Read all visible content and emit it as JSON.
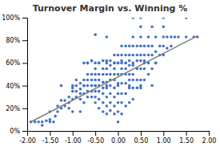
{
  "chart_data": {
    "type": "scatter",
    "title": "Turnover Margin vs. Winning %",
    "series": [
      {
        "type": "scatter",
        "color": "#4472C4",
        "x": [
          -1.92,
          -1.75,
          -1.67,
          -1.58,
          -1.5,
          -1.5,
          -1.42,
          -1.38,
          -1.33,
          -1.33,
          -1.25,
          -1.25,
          -1.17,
          -1.17,
          -1.08,
          -1.08,
          -1.08,
          -1.0,
          -1.0,
          -1.0,
          -1.0,
          -0.92,
          -0.92,
          -0.92,
          -0.83,
          -0.83,
          -0.83,
          -0.83,
          -0.83,
          -0.75,
          -0.75,
          -0.75,
          -0.75,
          -0.67,
          -0.67,
          -0.67,
          -0.67,
          -0.67,
          -0.67,
          -0.58,
          -0.58,
          -0.58,
          -0.58,
          -0.58,
          -0.58,
          -0.5,
          -0.5,
          -0.5,
          -0.5,
          -0.5,
          -0.5,
          -0.5,
          -0.5,
          -0.42,
          -0.42,
          -0.42,
          -0.42,
          -0.42,
          -0.42,
          -0.42,
          -0.33,
          -0.33,
          -0.33,
          -0.33,
          -0.33,
          -0.33,
          -0.33,
          -0.33,
          -0.25,
          -0.25,
          -0.25,
          -0.25,
          -0.25,
          -0.25,
          -0.25,
          -0.25,
          -0.25,
          -0.17,
          -0.17,
          -0.17,
          -0.17,
          -0.17,
          -0.17,
          -0.17,
          -0.17,
          -0.08,
          -0.08,
          -0.08,
          -0.08,
          -0.08,
          -0.08,
          -0.08,
          -0.08,
          -0.08,
          0.0,
          0.0,
          0.0,
          0.0,
          0.0,
          0.0,
          0.0,
          0.0,
          0.08,
          0.08,
          0.08,
          0.08,
          0.08,
          0.08,
          0.08,
          0.08,
          0.08,
          0.17,
          0.17,
          0.17,
          0.17,
          0.17,
          0.17,
          0.17,
          0.17,
          0.25,
          0.25,
          0.25,
          0.25,
          0.25,
          0.25,
          0.25,
          0.33,
          0.33,
          0.33,
          0.33,
          0.33,
          0.33,
          0.33,
          0.33,
          0.42,
          0.42,
          0.42,
          0.42,
          0.42,
          0.42,
          0.5,
          0.5,
          0.5,
          0.5,
          0.5,
          0.5,
          0.5,
          0.58,
          0.58,
          0.58,
          0.58,
          0.58,
          0.67,
          0.67,
          0.67,
          0.67,
          0.67,
          0.75,
          0.75,
          0.75,
          0.83,
          0.83,
          0.83,
          0.92,
          0.92,
          1.0,
          1.0,
          1.0,
          1.08,
          1.08,
          1.17,
          1.17,
          1.25,
          1.33,
          1.5,
          1.67,
          1.75,
          -1.83,
          -1.67,
          -1.5,
          -0.75,
          -0.5,
          0.33,
          0.5,
          1.0,
          1.5,
          -0.92,
          -0.58,
          -0.25,
          0.08,
          0.25,
          0.5,
          0.75,
          1.0,
          -0.67,
          -0.42,
          -0.08,
          0.0,
          0.17,
          0.33,
          0.58,
          0.83,
          -1.25,
          -1.0,
          -0.75,
          -0.5,
          -0.25,
          0.0,
          0.25,
          0.5,
          0.75
        ],
        "values": [
          0.08,
          0.08,
          0.05,
          0.09,
          0.1,
          0.17,
          0.08,
          0.13,
          0.17,
          0.22,
          0.2,
          0.27,
          0.22,
          0.27,
          0.2,
          0.25,
          0.3,
          0.28,
          0.35,
          0.38,
          0.17,
          0.3,
          0.35,
          0.4,
          0.28,
          0.33,
          0.37,
          0.42,
          0.17,
          0.25,
          0.33,
          0.4,
          0.45,
          0.3,
          0.35,
          0.4,
          0.45,
          0.5,
          0.6,
          0.3,
          0.35,
          0.4,
          0.45,
          0.5,
          0.62,
          0.25,
          0.3,
          0.35,
          0.4,
          0.45,
          0.5,
          0.55,
          0.6,
          0.2,
          0.28,
          0.35,
          0.4,
          0.45,
          0.5,
          0.6,
          0.17,
          0.25,
          0.33,
          0.38,
          0.43,
          0.5,
          0.55,
          0.62,
          0.15,
          0.22,
          0.3,
          0.38,
          0.43,
          0.5,
          0.55,
          0.6,
          0.83,
          0.18,
          0.25,
          0.33,
          0.4,
          0.45,
          0.5,
          0.58,
          0.62,
          0.15,
          0.22,
          0.3,
          0.38,
          0.45,
          0.5,
          0.55,
          0.6,
          0.67,
          0.08,
          0.17,
          0.25,
          0.33,
          0.42,
          0.5,
          0.6,
          0.67,
          0.15,
          0.25,
          0.33,
          0.42,
          0.5,
          0.55,
          0.6,
          0.67,
          0.75,
          0.22,
          0.33,
          0.42,
          0.5,
          0.55,
          0.6,
          0.67,
          0.75,
          0.25,
          0.38,
          0.45,
          0.5,
          0.58,
          0.67,
          0.75,
          0.28,
          0.38,
          0.45,
          0.5,
          0.58,
          0.67,
          0.75,
          0.83,
          0.38,
          0.45,
          0.55,
          0.62,
          0.67,
          0.75,
          0.38,
          0.45,
          0.55,
          0.62,
          0.67,
          0.75,
          0.83,
          0.45,
          0.55,
          0.62,
          0.67,
          0.75,
          0.5,
          0.6,
          0.67,
          0.75,
          0.83,
          0.55,
          0.67,
          0.75,
          0.6,
          0.7,
          0.83,
          0.67,
          0.75,
          0.67,
          0.75,
          0.83,
          0.73,
          0.83,
          0.75,
          0.83,
          0.83,
          0.83,
          0.83,
          0.83,
          0.83,
          0.08,
          0.08,
          0.08,
          0.6,
          0.85,
          1.0,
          1.0,
          1.0,
          1.0,
          0.45,
          0.62,
          0.62,
          0.62,
          0.62,
          0.92,
          0.92,
          0.92,
          0.6,
          0.6,
          0.6,
          0.6,
          0.6,
          0.6,
          0.6,
          0.6,
          0.4,
          0.4,
          0.4,
          0.4,
          0.4,
          0.4,
          0.4,
          0.4,
          0.4
        ]
      },
      {
        "type": "line",
        "color": "#808080",
        "x": [
          -1.92,
          1.75
        ],
        "values": [
          0.08,
          0.84
        ]
      }
    ],
    "xlim": [
      -2.0,
      2.0
    ],
    "ylim": [
      0.0,
      1.0
    ],
    "xticks": [
      {
        "value": -2.0,
        "label": "-2.00"
      },
      {
        "value": -1.5,
        "label": "-1.50"
      },
      {
        "value": -1.0,
        "label": "-1.00"
      },
      {
        "value": -0.5,
        "label": "-0.50"
      },
      {
        "value": 0.0,
        "label": "0.00"
      },
      {
        "value": 0.5,
        "label": "0.50"
      },
      {
        "value": 1.0,
        "label": "1.00"
      },
      {
        "value": 1.5,
        "label": "1.50"
      },
      {
        "value": 2.0,
        "label": "2.00"
      }
    ],
    "yticks": [
      {
        "value": 0.0,
        "label": "0%"
      },
      {
        "value": 0.2,
        "label": "20%"
      },
      {
        "value": 0.4,
        "label": "40%"
      },
      {
        "value": 0.6,
        "label": "60%"
      },
      {
        "value": 0.8,
        "label": "80%"
      },
      {
        "value": 1.0,
        "label": "100%"
      }
    ],
    "grid": false
  }
}
